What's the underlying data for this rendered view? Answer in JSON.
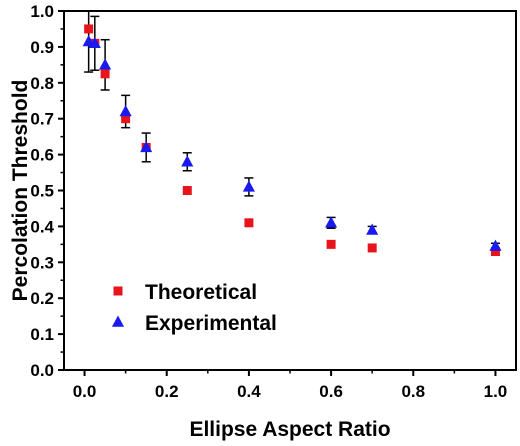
{
  "chart_data": {
    "type": "scatter",
    "xlabel": "Ellipse Aspect Ratio",
    "ylabel": "Percolation Threshold",
    "xlim": [
      -0.05,
      1.05
    ],
    "ylim": [
      0.0,
      1.0
    ],
    "xticks": [
      0.0,
      0.2,
      0.4,
      0.6,
      0.8,
      1.0
    ],
    "xtick_labels": [
      "0.0",
      "0.2",
      "0.4",
      "0.6",
      "0.8",
      "1.0"
    ],
    "yticks": [
      0.0,
      0.1,
      0.2,
      0.3,
      0.4,
      0.5,
      0.6,
      0.7,
      0.8,
      0.9,
      1.0
    ],
    "ytick_labels": [
      "0.0",
      "0.1",
      "0.2",
      "0.3",
      "0.4",
      "0.5",
      "0.6",
      "0.7",
      "0.8",
      "0.9",
      "1.0"
    ],
    "grid": false,
    "legend_position": "bottom-left",
    "series": [
      {
        "name": "Theoretical",
        "marker": "square",
        "color": "#e8141c",
        "x": [
          0.01,
          0.025,
          0.05,
          0.1,
          0.15,
          0.25,
          0.4,
          0.6,
          0.7,
          1.0
        ],
        "y": [
          0.95,
          0.91,
          0.825,
          0.7,
          0.62,
          0.5,
          0.41,
          0.35,
          0.34,
          0.33
        ]
      },
      {
        "name": "Experimental",
        "marker": "triangle",
        "color": "#1a1aee",
        "x": [
          0.01,
          0.025,
          0.05,
          0.1,
          0.15,
          0.25,
          0.4,
          0.6,
          0.7,
          1.0
        ],
        "y": [
          0.915,
          0.91,
          0.85,
          0.72,
          0.62,
          0.58,
          0.51,
          0.41,
          0.39,
          0.345
        ],
        "error": [
          0.085,
          0.075,
          0.07,
          0.045,
          0.04,
          0.025,
          0.025,
          0.015,
          0.01,
          0.008
        ]
      }
    ]
  }
}
